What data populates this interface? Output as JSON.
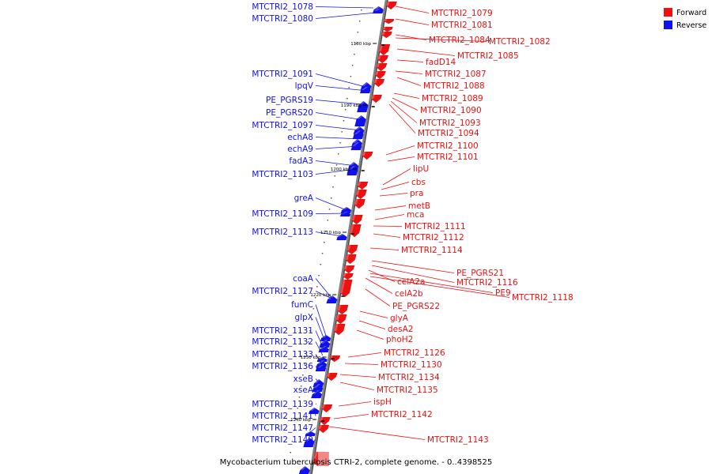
{
  "caption": "Mycobacterium tuberculosis CTRI-2, complete genome. - 0..4398525",
  "legend": [
    {
      "label": "Forward",
      "color": "#ee1111"
    },
    {
      "label": "Reverse",
      "color": "#1111ee"
    }
  ],
  "colors": {
    "forward": "#ee1111",
    "reverse": "#1111ee",
    "backbone": "#808080",
    "shadow": "#444444"
  },
  "ticks": [
    "1180 kbp",
    "1190 kbp",
    "1200 kbp",
    "1210 kbp",
    "1220 kbp",
    "1230 kbp",
    "1240 kbp"
  ],
  "reverse_labels": [
    "MTCTRI2_1078",
    "MTCTRI2_1080",
    "MTCTRI2_1091",
    "lpqV",
    "PE_PGRS19",
    "PE_PGRS20",
    "MTCTRI2_1097",
    "echA8",
    "echA9",
    "fadA3",
    "MTCTRI2_1103",
    "greA",
    "MTCTRI2_1109",
    "MTCTRI2_1113",
    "coaA",
    "MTCTRI2_1127",
    "fumC",
    "glpX",
    "MTCTRI2_1131",
    "MTCTRI2_1132",
    "MTCTRI2_1133",
    "MTCTRI2_1136",
    "xseB",
    "xseA",
    "MTCTRI2_1139",
    "MTCTRI2_1141",
    "MTCTRI2_1147",
    "MTCTRI2_1149"
  ],
  "forward_labels": [
    "MTCTRI2_1079",
    "MTCTRI2_1081",
    "MTCTRI2_1084",
    "MTCTRI2_1082",
    "MTCTRI2_1085",
    "fadD14",
    "MTCTRI2_1087",
    "MTCTRI2_1088",
    "MTCTRI2_1089",
    "MTCTRI2_1090",
    "MTCTRI2_1093",
    "MTCTRI2_1094",
    "MTCTRI2_1100",
    "MTCTRI2_1101",
    "lipU",
    "cbs",
    "pra",
    "metB",
    "mca",
    "MTCTRI2_1111",
    "MTCTRI2_1112",
    "MTCTRI2_1114",
    "PE_PGRS21",
    "MTCTRI2_1116",
    "celA2a",
    "celA2b",
    "PE9",
    "MTCTRI2_1118",
    "PE_PGRS22",
    "glyA",
    "desA2",
    "phoH2",
    "MTCTRI2_1126",
    "MTCTRI2_1130",
    "MTCTRI2_1134",
    "MTCTRI2_1135",
    "ispH",
    "MTCTRI2_1142",
    "MTCTRI2_1143"
  ]
}
